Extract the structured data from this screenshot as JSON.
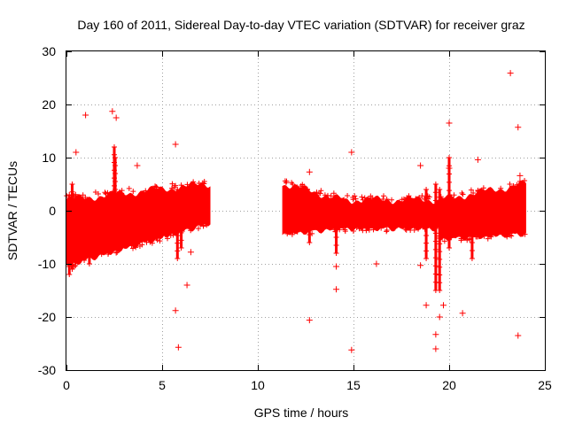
{
  "chart_data": {
    "type": "scatter",
    "title": "Day 160 of 2011, Sidereal Day-to-day VTEC variation (SDTVAR) for receiver graz",
    "xlabel": "GPS time / hours",
    "ylabel": "SDTVAR / TECUs",
    "xlim": [
      0,
      25
    ],
    "ylim": [
      -30,
      30
    ],
    "xticks": [
      0,
      5,
      10,
      15,
      20,
      25
    ],
    "yticks": [
      -30,
      -20,
      -10,
      0,
      10,
      20,
      30
    ],
    "grid": true,
    "marker": "+",
    "series_color": "#ff0000",
    "series": [
      {
        "name": "SDTVAR",
        "bands": [
          {
            "x_start": 0.0,
            "x_end": 7.5,
            "y_low_start": -10,
            "y_low_end": -2,
            "y_high_start": 2,
            "y_high_end": 5
          },
          {
            "x_start": 11.3,
            "x_end": 14.5,
            "y_low_start": -4,
            "y_low_end": -3,
            "y_high_start": 5,
            "y_high_end": 2
          },
          {
            "x_start": 14.5,
            "x_end": 19.5,
            "y_low_start": -3,
            "y_low_end": -3,
            "y_high_start": 2,
            "y_high_end": 2
          },
          {
            "x_start": 19.5,
            "x_end": 24.0,
            "y_low_start": -5,
            "y_low_end": -4,
            "y_high_start": 2,
            "y_high_end": 5
          }
        ],
        "spikes": [
          {
            "x": 0.15,
            "y_min": -12,
            "y_max": 3
          },
          {
            "x": 0.3,
            "y_min": -11,
            "y_max": 5
          },
          {
            "x": 1.2,
            "y_min": -10,
            "y_max": 1
          },
          {
            "x": 2.5,
            "y_min": -7,
            "y_max": 12
          },
          {
            "x": 2.55,
            "y_min": -5,
            "y_max": 10
          },
          {
            "x": 5.8,
            "y_min": -9,
            "y_max": 4
          },
          {
            "x": 6.0,
            "y_min": -7,
            "y_max": 3
          },
          {
            "x": 12.7,
            "y_min": -6,
            "y_max": 3
          },
          {
            "x": 14.1,
            "y_min": -8,
            "y_max": 1
          },
          {
            "x": 18.8,
            "y_min": -9,
            "y_max": 4
          },
          {
            "x": 19.3,
            "y_min": -15,
            "y_max": 5
          },
          {
            "x": 19.5,
            "y_min": -15,
            "y_max": 4
          },
          {
            "x": 20.0,
            "y_min": -7,
            "y_max": 10
          },
          {
            "x": 21.2,
            "y_min": -9,
            "y_max": 0
          }
        ],
        "outliers": [
          {
            "x": 0.5,
            "y": 11
          },
          {
            "x": 1.0,
            "y": 18
          },
          {
            "x": 2.4,
            "y": 18.7
          },
          {
            "x": 2.6,
            "y": 17.5
          },
          {
            "x": 3.7,
            "y": 8.5
          },
          {
            "x": 5.7,
            "y": 12.5
          },
          {
            "x": 5.7,
            "y": -18.8
          },
          {
            "x": 5.85,
            "y": -25.7
          },
          {
            "x": 6.3,
            "y": -14
          },
          {
            "x": 6.5,
            "y": -7.8
          },
          {
            "x": 12.7,
            "y": -20.6
          },
          {
            "x": 12.7,
            "y": 7.3
          },
          {
            "x": 14.1,
            "y": -14.8
          },
          {
            "x": 14.1,
            "y": -10.5
          },
          {
            "x": 14.9,
            "y": 11
          },
          {
            "x": 14.9,
            "y": -26.2
          },
          {
            "x": 16.2,
            "y": -10
          },
          {
            "x": 18.5,
            "y": 8.5
          },
          {
            "x": 18.5,
            "y": -10.3
          },
          {
            "x": 18.8,
            "y": -17.8
          },
          {
            "x": 19.3,
            "y": -23.3
          },
          {
            "x": 19.3,
            "y": -26
          },
          {
            "x": 19.5,
            "y": -20
          },
          {
            "x": 19.7,
            "y": -17.8
          },
          {
            "x": 20.0,
            "y": 16.5
          },
          {
            "x": 20.0,
            "y": 8
          },
          {
            "x": 20.7,
            "y": -19.3
          },
          {
            "x": 21.5,
            "y": 9.6
          },
          {
            "x": 23.2,
            "y": 25.9
          },
          {
            "x": 23.6,
            "y": 15.7
          },
          {
            "x": 23.6,
            "y": -23.5
          },
          {
            "x": 23.7,
            "y": 6.6
          }
        ]
      }
    ]
  }
}
